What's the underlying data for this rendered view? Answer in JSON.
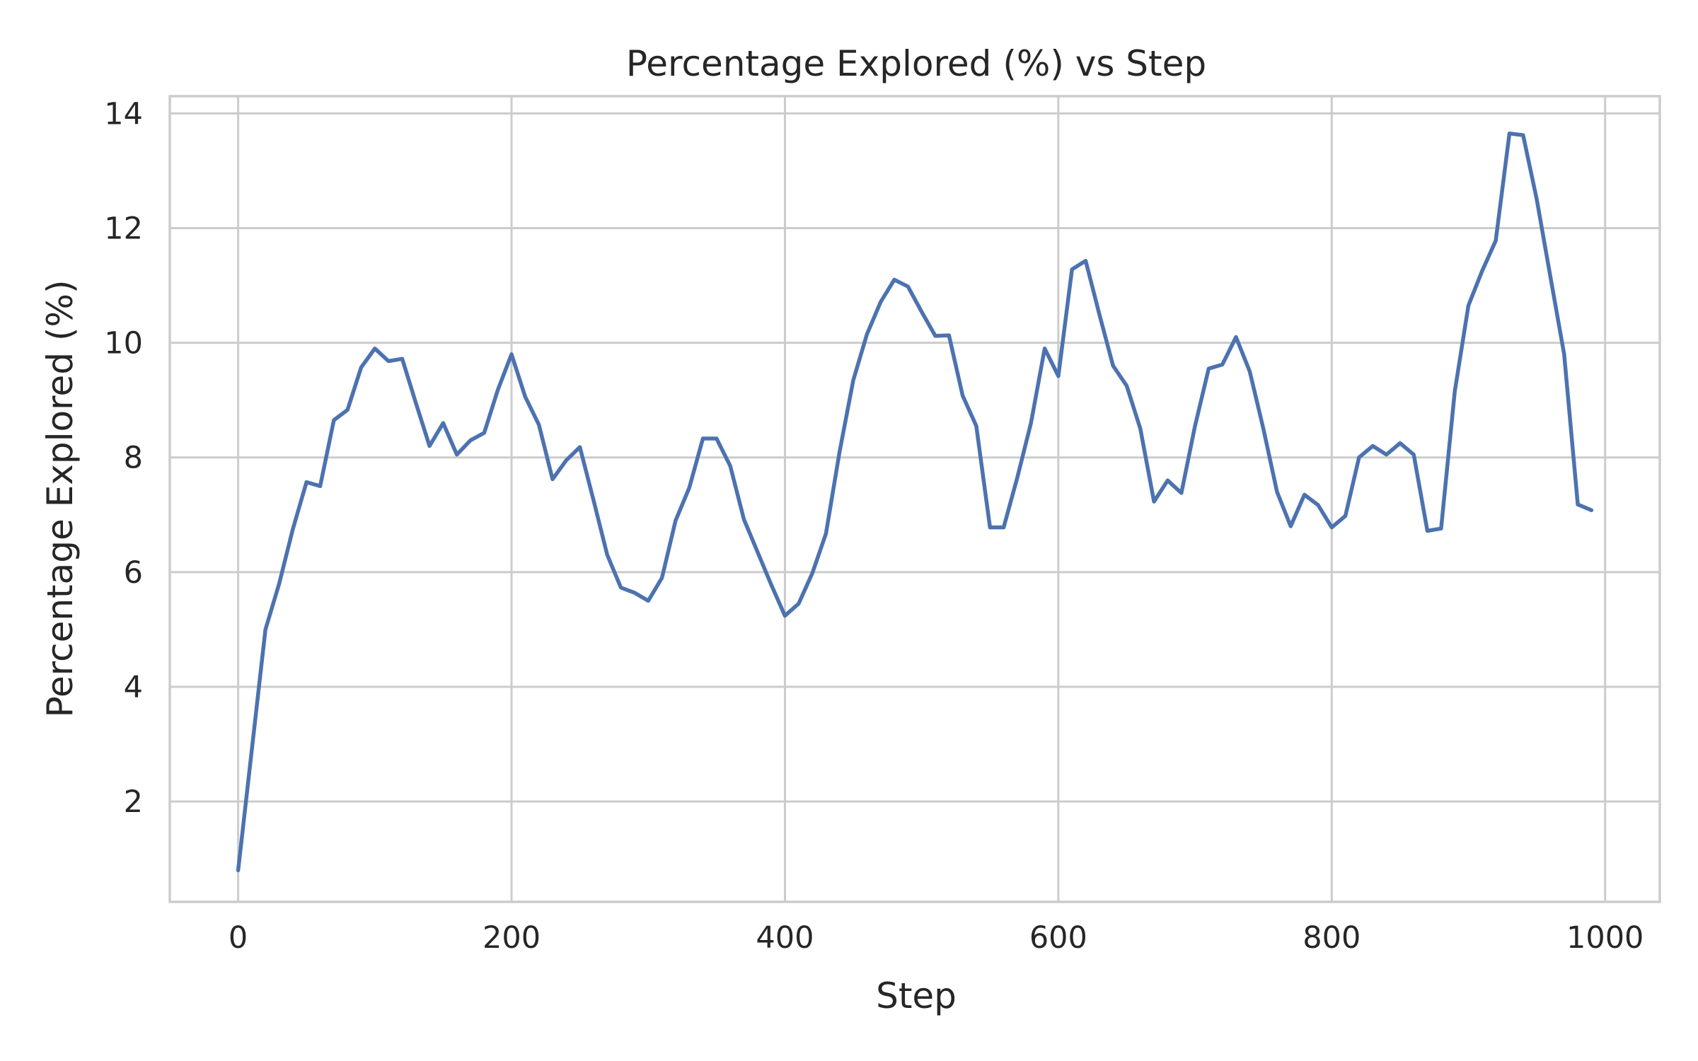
{
  "chart_data": {
    "type": "line",
    "title": "Percentage Explored (%) vs Step",
    "xlabel": "Step",
    "ylabel": "Percentage Explored (%)",
    "xlim": [
      -50,
      1040
    ],
    "ylim": [
      0.25,
      14.3
    ],
    "xticks": [
      0,
      200,
      400,
      600,
      800,
      1000
    ],
    "yticks": [
      2,
      4,
      6,
      8,
      10,
      12,
      14
    ],
    "xtick_labels": [
      "0",
      "200",
      "400",
      "600",
      "800",
      "1000"
    ],
    "ytick_labels": [
      "2",
      "4",
      "6",
      "8",
      "10",
      "12",
      "14"
    ],
    "grid": true,
    "series_color": "#4c72b0",
    "series": [
      {
        "x": [
          0,
          10,
          20,
          30,
          40,
          50,
          60,
          70,
          80,
          90,
          100,
          110,
          120,
          130,
          140,
          150,
          160,
          170,
          180,
          190,
          200,
          210,
          220,
          230,
          240,
          250,
          260,
          270,
          280,
          290,
          300,
          310,
          320,
          330,
          340,
          350,
          360,
          370,
          380,
          390,
          400,
          410,
          420,
          430,
          440,
          450,
          460,
          470,
          480,
          490,
          500,
          510,
          520,
          530,
          540,
          550,
          560,
          570,
          580,
          590,
          600,
          610,
          620,
          630,
          640,
          650,
          660,
          670,
          680,
          690,
          700,
          710,
          720,
          730,
          740,
          750,
          760,
          770,
          780,
          790,
          800,
          810,
          820,
          830,
          840,
          850,
          860,
          870,
          880,
          890,
          900,
          910,
          920,
          930,
          940,
          950,
          960,
          970,
          980,
          990
        ],
        "values": [
          0.8,
          2.9,
          5.0,
          5.8,
          6.75,
          7.57,
          7.5,
          8.65,
          8.83,
          9.57,
          9.9,
          9.68,
          9.72,
          8.95,
          8.2,
          8.6,
          8.05,
          8.3,
          8.43,
          9.18,
          9.8,
          9.06,
          8.57,
          7.62,
          7.95,
          8.18,
          7.25,
          6.3,
          5.73,
          5.64,
          5.5,
          5.9,
          6.9,
          7.47,
          8.33,
          8.33,
          7.85,
          6.92,
          6.35,
          5.78,
          5.24,
          5.45,
          5.98,
          6.67,
          8.1,
          9.35,
          10.15,
          10.71,
          11.1,
          10.98,
          10.54,
          10.12,
          10.13,
          9.08,
          8.55,
          6.78,
          6.78,
          7.65,
          8.6,
          9.9,
          9.42,
          11.28,
          11.43,
          10.5,
          9.6,
          9.25,
          8.5,
          7.23,
          7.6,
          7.38,
          8.55,
          9.55,
          9.62,
          10.1,
          9.5,
          8.5,
          7.4,
          6.8,
          7.35,
          7.17,
          6.78,
          6.98,
          8.0,
          8.2,
          8.05,
          8.25,
          8.05,
          6.72,
          6.76,
          9.15,
          10.65,
          11.25,
          11.78,
          13.65,
          13.62,
          12.5,
          11.15,
          9.8,
          7.18,
          7.08
        ]
      }
    ]
  }
}
